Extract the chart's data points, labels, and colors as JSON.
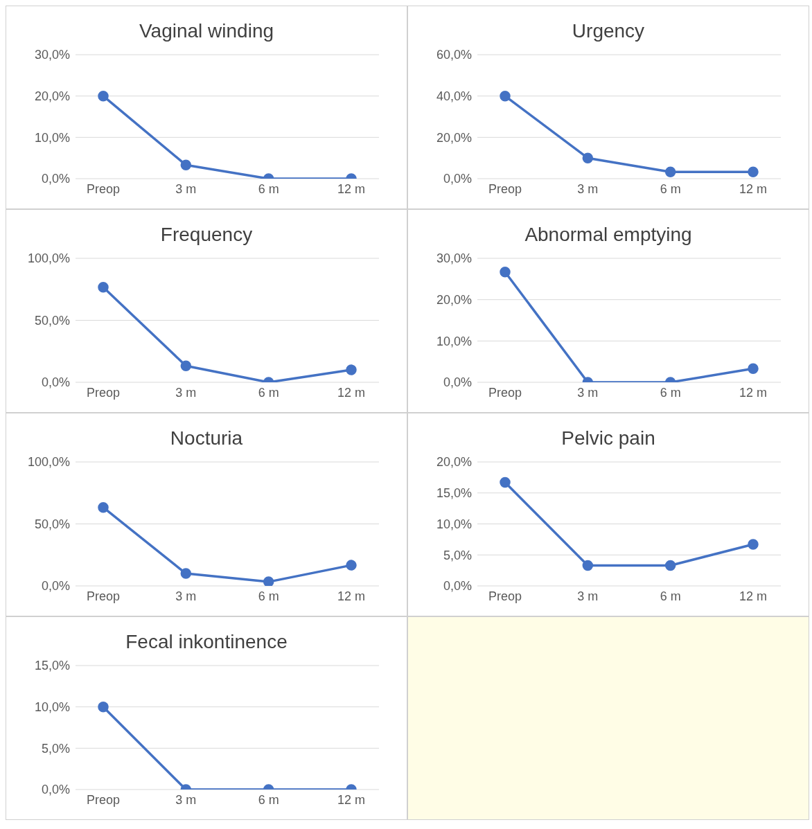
{
  "chart_data": [
    {
      "type": "line",
      "title": "Vaginal winding",
      "categories": [
        "Preop",
        "3 m",
        "6 m",
        "12 m"
      ],
      "series": [
        {
          "color": "#4472c4",
          "values": [
            20,
            3.3,
            0,
            0
          ]
        }
      ],
      "ylim": [
        0,
        30
      ],
      "yticks": [
        {
          "value": 0,
          "label": "0,0%"
        },
        {
          "value": 10,
          "label": "10,0%"
        },
        {
          "value": 20,
          "label": "20,0%"
        },
        {
          "value": 30,
          "label": "30,0%"
        }
      ],
      "grid": "y",
      "marker": "circle"
    },
    {
      "type": "line",
      "title": "Urgency",
      "categories": [
        "Preop",
        "3 m",
        "6 m",
        "12 m"
      ],
      "series": [
        {
          "color": "#4472c4",
          "values": [
            40,
            10,
            3.3,
            3.3
          ]
        }
      ],
      "ylim": [
        0,
        60
      ],
      "yticks": [
        {
          "value": 0,
          "label": "0,0%"
        },
        {
          "value": 20,
          "label": "20,0%"
        },
        {
          "value": 40,
          "label": "40,0%"
        },
        {
          "value": 60,
          "label": "60,0%"
        }
      ],
      "grid": "y",
      "marker": "circle"
    },
    {
      "type": "line",
      "title": "Frequency",
      "categories": [
        "Preop",
        "3 m",
        "6 m",
        "12 m"
      ],
      "series": [
        {
          "color": "#4472c4",
          "values": [
            76.7,
            13.3,
            0,
            10
          ]
        }
      ],
      "ylim": [
        0,
        100
      ],
      "yticks": [
        {
          "value": 0,
          "label": "0,0%"
        },
        {
          "value": 50,
          "label": "50,0%"
        },
        {
          "value": 100,
          "label": "100,0%"
        }
      ],
      "grid": "y",
      "marker": "circle"
    },
    {
      "type": "line",
      "title": "Abnormal emptying",
      "categories": [
        "Preop",
        "3 m",
        "6 m",
        "12 m"
      ],
      "series": [
        {
          "color": "#4472c4",
          "values": [
            26.7,
            0,
            0,
            3.3
          ]
        }
      ],
      "ylim": [
        0,
        30
      ],
      "yticks": [
        {
          "value": 0,
          "label": "0,0%"
        },
        {
          "value": 10,
          "label": "10,0%"
        },
        {
          "value": 20,
          "label": "20,0%"
        },
        {
          "value": 30,
          "label": "30,0%"
        }
      ],
      "grid": "y",
      "marker": "circle"
    },
    {
      "type": "line",
      "title": "Nocturia",
      "categories": [
        "Preop",
        "3 m",
        "6 m",
        "12 m"
      ],
      "series": [
        {
          "color": "#4472c4",
          "values": [
            63.3,
            10,
            3.3,
            16.7
          ]
        }
      ],
      "ylim": [
        0,
        100
      ],
      "yticks": [
        {
          "value": 0,
          "label": "0,0%"
        },
        {
          "value": 50,
          "label": "50,0%"
        },
        {
          "value": 100,
          "label": "100,0%"
        }
      ],
      "grid": "y",
      "marker": "circle"
    },
    {
      "type": "line",
      "title": "Pelvic pain",
      "categories": [
        "Preop",
        "3 m",
        "6 m",
        "12 m"
      ],
      "series": [
        {
          "color": "#4472c4",
          "values": [
            16.7,
            3.3,
            3.3,
            6.7
          ]
        }
      ],
      "ylim": [
        0,
        20
      ],
      "yticks": [
        {
          "value": 0,
          "label": "0,0%"
        },
        {
          "value": 5,
          "label": "5,0%"
        },
        {
          "value": 10,
          "label": "10,0%"
        },
        {
          "value": 15,
          "label": "15,0%"
        },
        {
          "value": 20,
          "label": "20,0%"
        }
      ],
      "grid": "y",
      "marker": "circle"
    },
    {
      "type": "line",
      "title": "Fecal inkontinence",
      "categories": [
        "Preop",
        "3 m",
        "6 m",
        "12 m"
      ],
      "series": [
        {
          "color": "#4472c4",
          "values": [
            10,
            0,
            0,
            0
          ]
        }
      ],
      "ylim": [
        0,
        15
      ],
      "yticks": [
        {
          "value": 0,
          "label": "0,0%"
        },
        {
          "value": 5,
          "label": "5,0%"
        },
        {
          "value": 10,
          "label": "10,0%"
        },
        {
          "value": 15,
          "label": "15,0%"
        }
      ],
      "grid": "y",
      "marker": "circle"
    }
  ]
}
